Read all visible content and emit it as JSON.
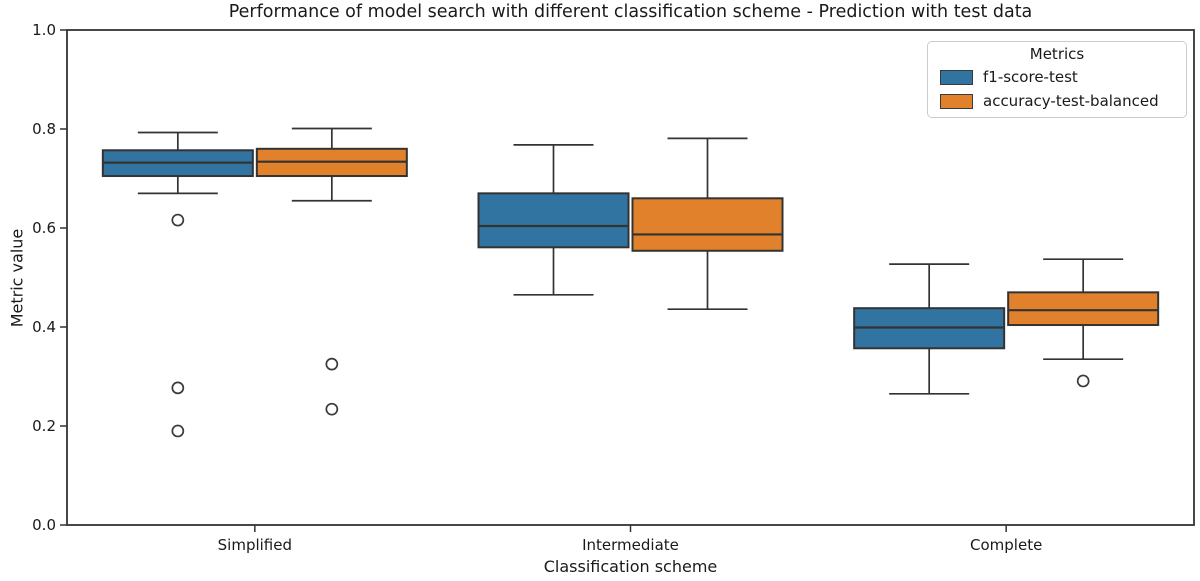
{
  "chart_data": {
    "type": "boxplot",
    "title": "Performance of model search with different classification scheme - Prediction with test data",
    "xlabel": "Classification scheme",
    "ylabel": "Metric value",
    "ylim": [
      0.0,
      1.0
    ],
    "yticks": [
      0.0,
      0.2,
      0.4,
      0.6,
      0.8,
      1.0
    ],
    "ytick_labels": [
      "0.0",
      "0.2",
      "0.4",
      "0.6",
      "0.8",
      "1.0"
    ],
    "grid": false,
    "categories": [
      "Simplified",
      "Intermediate",
      "Complete"
    ],
    "series": [
      {
        "name": "f1-score-test",
        "color": "#3274A1",
        "boxes": [
          {
            "category": "Simplified",
            "whisker_low": 0.67,
            "q1": 0.705,
            "median": 0.732,
            "q3": 0.757,
            "whisker_high": 0.793,
            "outliers": [
              0.616,
              0.277,
              0.19
            ]
          },
          {
            "category": "Intermediate",
            "whisker_low": 0.465,
            "q1": 0.561,
            "median": 0.604,
            "q3": 0.67,
            "whisker_high": 0.768,
            "outliers": []
          },
          {
            "category": "Complete",
            "whisker_low": 0.265,
            "q1": 0.357,
            "median": 0.399,
            "q3": 0.438,
            "whisker_high": 0.527,
            "outliers": []
          }
        ]
      },
      {
        "name": "accuracy-test-balanced",
        "color": "#E1812C",
        "boxes": [
          {
            "category": "Simplified",
            "whisker_low": 0.655,
            "q1": 0.705,
            "median": 0.734,
            "q3": 0.76,
            "whisker_high": 0.801,
            "outliers": [
              0.325,
              0.234
            ]
          },
          {
            "category": "Intermediate",
            "whisker_low": 0.436,
            "q1": 0.554,
            "median": 0.587,
            "q3": 0.66,
            "whisker_high": 0.781,
            "outliers": []
          },
          {
            "category": "Complete",
            "whisker_low": 0.335,
            "q1": 0.404,
            "median": 0.434,
            "q3": 0.47,
            "whisker_high": 0.537,
            "outliers": [
              0.291
            ]
          }
        ]
      }
    ],
    "legend": {
      "title": "Metrics",
      "position": "upper right"
    },
    "style": {
      "edge_color": "#333333",
      "flier_color": "#3a3a3a",
      "spine_color": "#333333",
      "text_color": "#1a1a1a",
      "legend_border_color": "#cccccc",
      "background_color": "#ffffff"
    }
  }
}
